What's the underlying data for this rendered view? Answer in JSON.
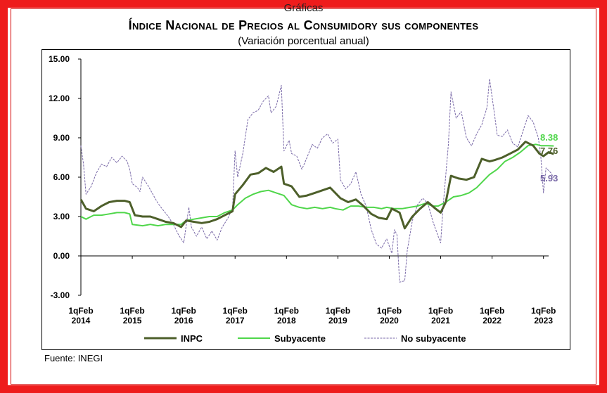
{
  "header": {
    "top_label": "Gráficas",
    "title": "Índice Nacional de Precios al Consumidory sus componentes",
    "subtitle": "(Variación porcentual anual)"
  },
  "source": "Fuente: INEGI",
  "colors": {
    "frame": "#ee1c1c",
    "inpc": "#4d5f2a",
    "subyacente": "#4fd64a",
    "no_subyacente": "#7a6aa8"
  },
  "chart_data": {
    "type": "line",
    "ylim": [
      -3,
      15
    ],
    "yticks": [
      "-3.00",
      "0.00",
      "3.00",
      "6.00",
      "9.00",
      "12.00",
      "15.00"
    ],
    "xticks": [
      {
        "x": 2014,
        "label1": "1qFeb",
        "label2": "2014"
      },
      {
        "x": 2015,
        "label1": "1qFeb",
        "label2": "2015"
      },
      {
        "x": 2016,
        "label1": "1qFeb",
        "label2": "2016"
      },
      {
        "x": 2017,
        "label1": "1qFeb",
        "label2": "2017"
      },
      {
        "x": 2018,
        "label1": "1qFeb",
        "label2": "2018"
      },
      {
        "x": 2019,
        "label1": "1qFeb",
        "label2": "2019"
      },
      {
        "x": 2020,
        "label1": "1qFeb",
        "label2": "2020"
      },
      {
        "x": 2021,
        "label1": "1qFeb",
        "label2": "2021"
      },
      {
        "x": 2022,
        "label1": "1qFeb",
        "label2": "2022"
      },
      {
        "x": 2023,
        "label1": "1qFeb",
        "label2": "2023"
      }
    ],
    "series": [
      {
        "name": "INPC",
        "style": "thick",
        "points": [
          [
            2014.0,
            4.3
          ],
          [
            2014.1,
            3.6
          ],
          [
            2014.25,
            3.4
          ],
          [
            2014.4,
            3.8
          ],
          [
            2014.55,
            4.1
          ],
          [
            2014.7,
            4.2
          ],
          [
            2014.85,
            4.2
          ],
          [
            2014.95,
            4.1
          ],
          [
            2015.05,
            3.1
          ],
          [
            2015.2,
            3.0
          ],
          [
            2015.35,
            3.0
          ],
          [
            2015.5,
            2.8
          ],
          [
            2015.65,
            2.6
          ],
          [
            2015.8,
            2.5
          ],
          [
            2015.95,
            2.2
          ],
          [
            2016.05,
            2.7
          ],
          [
            2016.2,
            2.6
          ],
          [
            2016.35,
            2.5
          ],
          [
            2016.5,
            2.6
          ],
          [
            2016.65,
            2.8
          ],
          [
            2016.8,
            3.1
          ],
          [
            2016.95,
            3.4
          ],
          [
            2017.0,
            4.7
          ],
          [
            2017.15,
            5.4
          ],
          [
            2017.3,
            6.2
          ],
          [
            2017.45,
            6.3
          ],
          [
            2017.6,
            6.7
          ],
          [
            2017.75,
            6.4
          ],
          [
            2017.9,
            6.8
          ],
          [
            2017.95,
            5.5
          ],
          [
            2018.1,
            5.3
          ],
          [
            2018.25,
            4.5
          ],
          [
            2018.4,
            4.6
          ],
          [
            2018.55,
            4.8
          ],
          [
            2018.7,
            5.0
          ],
          [
            2018.85,
            5.2
          ],
          [
            2018.95,
            4.8
          ],
          [
            2019.05,
            4.4
          ],
          [
            2019.2,
            4.1
          ],
          [
            2019.35,
            4.3
          ],
          [
            2019.5,
            3.8
          ],
          [
            2019.65,
            3.2
          ],
          [
            2019.8,
            2.9
          ],
          [
            2019.95,
            2.8
          ],
          [
            2020.05,
            3.6
          ],
          [
            2020.2,
            3.3
          ],
          [
            2020.3,
            2.1
          ],
          [
            2020.45,
            3.0
          ],
          [
            2020.6,
            3.6
          ],
          [
            2020.75,
            4.1
          ],
          [
            2020.9,
            3.6
          ],
          [
            2021.0,
            3.3
          ],
          [
            2021.1,
            4.1
          ],
          [
            2021.2,
            6.1
          ],
          [
            2021.35,
            5.9
          ],
          [
            2021.5,
            5.8
          ],
          [
            2021.65,
            6.0
          ],
          [
            2021.8,
            7.4
          ],
          [
            2021.95,
            7.2
          ],
          [
            2022.05,
            7.3
          ],
          [
            2022.2,
            7.5
          ],
          [
            2022.35,
            7.8
          ],
          [
            2022.5,
            8.1
          ],
          [
            2022.65,
            8.7
          ],
          [
            2022.8,
            8.4
          ],
          [
            2022.92,
            7.8
          ],
          [
            2023.0,
            7.6
          ],
          [
            2023.1,
            7.9
          ],
          [
            2023.2,
            7.76
          ]
        ]
      },
      {
        "name": "Subyacente",
        "style": "medium",
        "points": [
          [
            2014.0,
            3.0
          ],
          [
            2014.1,
            2.8
          ],
          [
            2014.25,
            3.1
          ],
          [
            2014.4,
            3.1
          ],
          [
            2014.55,
            3.2
          ],
          [
            2014.7,
            3.3
          ],
          [
            2014.85,
            3.3
          ],
          [
            2014.95,
            3.2
          ],
          [
            2015.0,
            2.4
          ],
          [
            2015.2,
            2.3
          ],
          [
            2015.35,
            2.4
          ],
          [
            2015.5,
            2.3
          ],
          [
            2015.65,
            2.4
          ],
          [
            2015.8,
            2.4
          ],
          [
            2015.95,
            2.4
          ],
          [
            2016.05,
            2.7
          ],
          [
            2016.2,
            2.8
          ],
          [
            2016.35,
            2.9
          ],
          [
            2016.5,
            3.0
          ],
          [
            2016.65,
            3.0
          ],
          [
            2016.8,
            3.3
          ],
          [
            2016.95,
            3.5
          ],
          [
            2017.05,
            3.9
          ],
          [
            2017.2,
            4.4
          ],
          [
            2017.35,
            4.7
          ],
          [
            2017.5,
            4.9
          ],
          [
            2017.65,
            5.0
          ],
          [
            2017.8,
            4.8
          ],
          [
            2017.95,
            4.6
          ],
          [
            2018.1,
            3.9
          ],
          [
            2018.25,
            3.7
          ],
          [
            2018.4,
            3.6
          ],
          [
            2018.55,
            3.7
          ],
          [
            2018.7,
            3.6
          ],
          [
            2018.85,
            3.7
          ],
          [
            2018.95,
            3.6
          ],
          [
            2019.1,
            3.5
          ],
          [
            2019.25,
            3.8
          ],
          [
            2019.4,
            3.8
          ],
          [
            2019.55,
            3.7
          ],
          [
            2019.7,
            3.7
          ],
          [
            2019.85,
            3.6
          ],
          [
            2019.95,
            3.7
          ],
          [
            2020.1,
            3.6
          ],
          [
            2020.25,
            3.6
          ],
          [
            2020.4,
            3.7
          ],
          [
            2020.55,
            3.8
          ],
          [
            2020.7,
            4.0
          ],
          [
            2020.85,
            3.8
          ],
          [
            2020.95,
            3.8
          ],
          [
            2021.1,
            4.1
          ],
          [
            2021.25,
            4.5
          ],
          [
            2021.4,
            4.6
          ],
          [
            2021.55,
            4.8
          ],
          [
            2021.7,
            5.2
          ],
          [
            2021.85,
            5.8
          ],
          [
            2021.95,
            6.2
          ],
          [
            2022.1,
            6.6
          ],
          [
            2022.25,
            7.2
          ],
          [
            2022.4,
            7.5
          ],
          [
            2022.55,
            7.9
          ],
          [
            2022.7,
            8.4
          ],
          [
            2022.85,
            8.5
          ],
          [
            2022.95,
            8.4
          ],
          [
            2023.1,
            8.4
          ],
          [
            2023.2,
            8.38
          ]
        ]
      },
      {
        "name": "No subyacente",
        "style": "thin",
        "points": [
          [
            2014.0,
            8.4
          ],
          [
            2014.05,
            7.0
          ],
          [
            2014.1,
            4.7
          ],
          [
            2014.2,
            5.3
          ],
          [
            2014.3,
            6.3
          ],
          [
            2014.4,
            7.0
          ],
          [
            2014.5,
            6.8
          ],
          [
            2014.6,
            7.5
          ],
          [
            2014.7,
            7.1
          ],
          [
            2014.8,
            7.6
          ],
          [
            2014.9,
            7.2
          ],
          [
            2014.95,
            6.6
          ],
          [
            2015.0,
            5.5
          ],
          [
            2015.1,
            5.2
          ],
          [
            2015.15,
            4.9
          ],
          [
            2015.2,
            6.0
          ],
          [
            2015.3,
            5.4
          ],
          [
            2015.4,
            4.7
          ],
          [
            2015.5,
            4.0
          ],
          [
            2015.6,
            3.5
          ],
          [
            2015.7,
            3.0
          ],
          [
            2015.8,
            2.4
          ],
          [
            2015.9,
            1.6
          ],
          [
            2016.0,
            1.0
          ],
          [
            2016.1,
            3.7
          ],
          [
            2016.15,
            2.2
          ],
          [
            2016.25,
            1.5
          ],
          [
            2016.35,
            2.2
          ],
          [
            2016.45,
            1.3
          ],
          [
            2016.55,
            1.9
          ],
          [
            2016.65,
            1.2
          ],
          [
            2016.75,
            2.2
          ],
          [
            2016.85,
            2.8
          ],
          [
            2016.95,
            3.6
          ],
          [
            2017.0,
            8.0
          ],
          [
            2017.05,
            6.0
          ],
          [
            2017.15,
            7.8
          ],
          [
            2017.25,
            10.4
          ],
          [
            2017.35,
            10.9
          ],
          [
            2017.45,
            11.1
          ],
          [
            2017.55,
            11.8
          ],
          [
            2017.65,
            12.2
          ],
          [
            2017.7,
            10.9
          ],
          [
            2017.8,
            11.4
          ],
          [
            2017.9,
            13.0
          ],
          [
            2017.95,
            8.0
          ],
          [
            2018.05,
            8.8
          ],
          [
            2018.1,
            7.8
          ],
          [
            2018.2,
            7.6
          ],
          [
            2018.3,
            6.6
          ],
          [
            2018.4,
            7.5
          ],
          [
            2018.5,
            8.5
          ],
          [
            2018.6,
            8.2
          ],
          [
            2018.7,
            9.0
          ],
          [
            2018.8,
            9.3
          ],
          [
            2018.9,
            8.6
          ],
          [
            2019.0,
            8.9
          ],
          [
            2019.05,
            5.8
          ],
          [
            2019.15,
            5.1
          ],
          [
            2019.25,
            5.5
          ],
          [
            2019.35,
            6.4
          ],
          [
            2019.45,
            4.7
          ],
          [
            2019.55,
            3.8
          ],
          [
            2019.65,
            2.0
          ],
          [
            2019.75,
            0.9
          ],
          [
            2019.85,
            0.6
          ],
          [
            2019.95,
            1.3
          ],
          [
            2020.05,
            0.2
          ],
          [
            2020.1,
            2.0
          ],
          [
            2020.15,
            1.6
          ],
          [
            2020.2,
            -2.0
          ],
          [
            2020.3,
            -1.9
          ],
          [
            2020.35,
            0.4
          ],
          [
            2020.45,
            2.7
          ],
          [
            2020.55,
            3.9
          ],
          [
            2020.65,
            4.4
          ],
          [
            2020.75,
            4.0
          ],
          [
            2020.85,
            2.6
          ],
          [
            2020.95,
            1.5
          ],
          [
            2021.0,
            1.0
          ],
          [
            2021.05,
            3.9
          ],
          [
            2021.15,
            8.5
          ],
          [
            2021.2,
            12.5
          ],
          [
            2021.3,
            10.5
          ],
          [
            2021.4,
            11.0
          ],
          [
            2021.5,
            9.0
          ],
          [
            2021.6,
            8.4
          ],
          [
            2021.7,
            9.3
          ],
          [
            2021.8,
            10.0
          ],
          [
            2021.9,
            11.3
          ],
          [
            2021.95,
            13.5
          ],
          [
            2022.05,
            10.7
          ],
          [
            2022.1,
            9.2
          ],
          [
            2022.2,
            9.1
          ],
          [
            2022.3,
            9.6
          ],
          [
            2022.4,
            8.6
          ],
          [
            2022.5,
            8.3
          ],
          [
            2022.6,
            9.5
          ],
          [
            2022.7,
            10.7
          ],
          [
            2022.8,
            10.2
          ],
          [
            2022.9,
            9.0
          ],
          [
            2022.95,
            7.5
          ],
          [
            2023.0,
            4.8
          ],
          [
            2023.05,
            6.7
          ],
          [
            2023.15,
            6.3
          ],
          [
            2023.2,
            5.93
          ]
        ]
      }
    ],
    "end_labels": [
      {
        "series": "Subyacente",
        "text": "8.38",
        "y": 8.38,
        "color": "#4fd64a"
      },
      {
        "series": "INPC",
        "text": "7.76",
        "y": 7.76,
        "color": "#4d5f2a"
      },
      {
        "series": "No subyacente",
        "text": "5.93",
        "y": 5.93,
        "color": "#7a6aa8"
      }
    ],
    "legend": [
      {
        "label": "INPC",
        "style": "thick",
        "color": "#4d5f2a"
      },
      {
        "label": "Subyacente",
        "style": "medium",
        "color": "#4fd64a"
      },
      {
        "label": "No subyacente",
        "style": "thin",
        "color": "#7a6aa8"
      }
    ],
    "legend_position": "bottom"
  }
}
